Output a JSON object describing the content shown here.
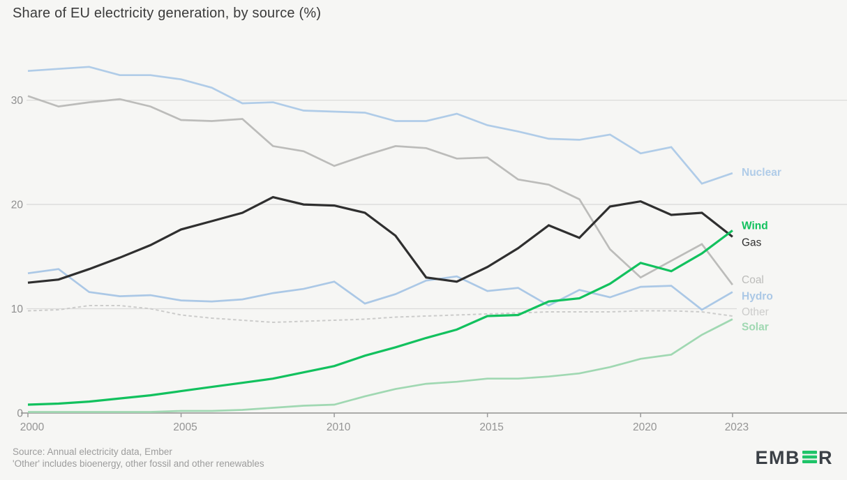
{
  "title": "Share of EU electricity generation, by source (%)",
  "footer": {
    "line1": "Source: Annual electricity data, Ember",
    "line2": "'Other' includes bioenergy, other fossil and other renewables"
  },
  "logo": {
    "prefix": "EMB",
    "suffix": "R",
    "dark_color": "#3b4046",
    "green_color": "#1ec468"
  },
  "chart_data": {
    "type": "line",
    "x_label_implied": "Year",
    "years": [
      2000,
      2001,
      2002,
      2003,
      2004,
      2005,
      2006,
      2007,
      2008,
      2009,
      2010,
      2011,
      2012,
      2013,
      2014,
      2015,
      2016,
      2017,
      2018,
      2019,
      2020,
      2021,
      2022,
      2023
    ],
    "x_ticks": [
      2000,
      2005,
      2010,
      2015,
      2020,
      2023
    ],
    "y_ticks": [
      0,
      10,
      20,
      30
    ],
    "ylim": [
      0,
      34.5
    ],
    "grid": true,
    "legend_position": "right-end-of-lines",
    "series": [
      {
        "name": "Other",
        "color": "#cccccb",
        "dashed": true,
        "label_bold": false,
        "label_dy": -6,
        "values": [
          9.8,
          9.9,
          10.3,
          10.3,
          10.0,
          9.4,
          9.1,
          8.9,
          8.7,
          8.8,
          8.9,
          9.0,
          9.2,
          9.3,
          9.4,
          9.5,
          9.6,
          9.7,
          9.7,
          9.7,
          9.8,
          9.8,
          9.7,
          9.3
        ]
      },
      {
        "name": "Solar",
        "color": "#a0d8b2",
        "dashed": false,
        "label_bold": true,
        "label_dy": 11,
        "values": [
          0.1,
          0.1,
          0.1,
          0.1,
          0.1,
          0.2,
          0.2,
          0.3,
          0.5,
          0.7,
          0.8,
          1.6,
          2.3,
          2.8,
          3.0,
          3.3,
          3.3,
          3.5,
          3.8,
          4.4,
          5.2,
          5.6,
          7.5,
          9.0
        ]
      },
      {
        "name": "Hydro",
        "color": "#abc8e6",
        "dashed": false,
        "label_bold": true,
        "label_dy": 6,
        "values": [
          13.4,
          13.8,
          11.6,
          11.2,
          11.3,
          10.8,
          10.7,
          10.9,
          11.5,
          11.9,
          12.6,
          10.5,
          11.4,
          12.7,
          13.1,
          11.7,
          12.0,
          10.3,
          11.8,
          11.1,
          12.1,
          12.2,
          9.9,
          11.6
        ]
      },
      {
        "name": "Coal",
        "color": "#bcbcba",
        "dashed": false,
        "label_bold": false,
        "label_dy": -7,
        "values": [
          30.4,
          29.4,
          29.8,
          30.1,
          29.4,
          28.1,
          28.0,
          28.2,
          25.6,
          25.1,
          23.7,
          24.7,
          25.6,
          25.4,
          24.4,
          24.5,
          22.4,
          21.9,
          20.5,
          15.7,
          13.0,
          14.6,
          16.2,
          12.3
        ]
      },
      {
        "name": "Nuclear",
        "color": "#b0cce8",
        "dashed": false,
        "label_bold": true,
        "label_dy": -1,
        "values": [
          32.8,
          33.0,
          33.2,
          32.4,
          32.4,
          32.0,
          31.2,
          29.7,
          29.8,
          29.0,
          28.9,
          28.8,
          28.0,
          28.0,
          28.7,
          27.6,
          27.0,
          26.3,
          26.2,
          26.7,
          24.9,
          25.5,
          22.0,
          23.0
        ]
      },
      {
        "name": "Gas",
        "color": "#2f2f2f",
        "dashed": false,
        "label_bold": false,
        "label_dy": 8,
        "values": [
          12.5,
          12.8,
          13.8,
          14.9,
          16.1,
          17.6,
          18.4,
          19.2,
          20.7,
          20.0,
          19.9,
          19.2,
          17.0,
          13.0,
          12.6,
          14.0,
          15.8,
          18.0,
          16.8,
          19.8,
          20.3,
          19.0,
          19.2,
          16.9
        ]
      },
      {
        "name": "Wind",
        "color": "#12c15e",
        "dashed": false,
        "label_bold": true,
        "label_dy": -7,
        "values": [
          0.8,
          0.9,
          1.1,
          1.4,
          1.7,
          2.1,
          2.5,
          2.9,
          3.3,
          3.9,
          4.5,
          5.5,
          6.3,
          7.2,
          8.0,
          9.3,
          9.4,
          10.7,
          11.0,
          12.4,
          14.4,
          13.6,
          15.3,
          17.5
        ]
      }
    ]
  }
}
